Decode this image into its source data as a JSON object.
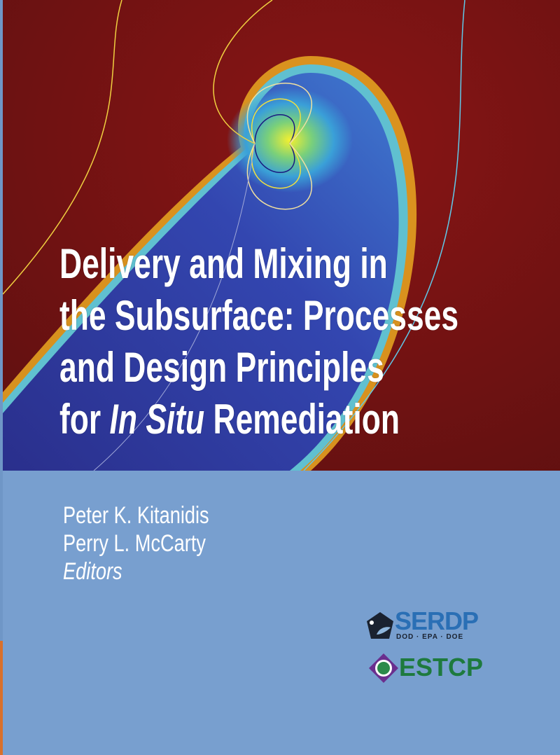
{
  "cover": {
    "title_lines": [
      "Delivery and Mixing in",
      "the Subsurface: Processes",
      "and Design Principles"
    ],
    "title_last_prefix": "for ",
    "title_last_italic": "In Situ",
    "title_last_suffix": " Remediation",
    "editors": [
      "Peter K. Kitanidis",
      "Perry L. McCarty"
    ],
    "editors_label": "Editors",
    "logos": {
      "serdp": {
        "name": "SERDP",
        "sub": "DOD · EPA · DOE"
      },
      "estcp": {
        "name": "ESTCP"
      }
    },
    "colors": {
      "background": "#789fcf",
      "art_red": "#7a1414",
      "plume_blue": "#2f3d9c",
      "serdp_blue": "#2a6fb5",
      "estcp_green": "#1e7a3e"
    }
  }
}
